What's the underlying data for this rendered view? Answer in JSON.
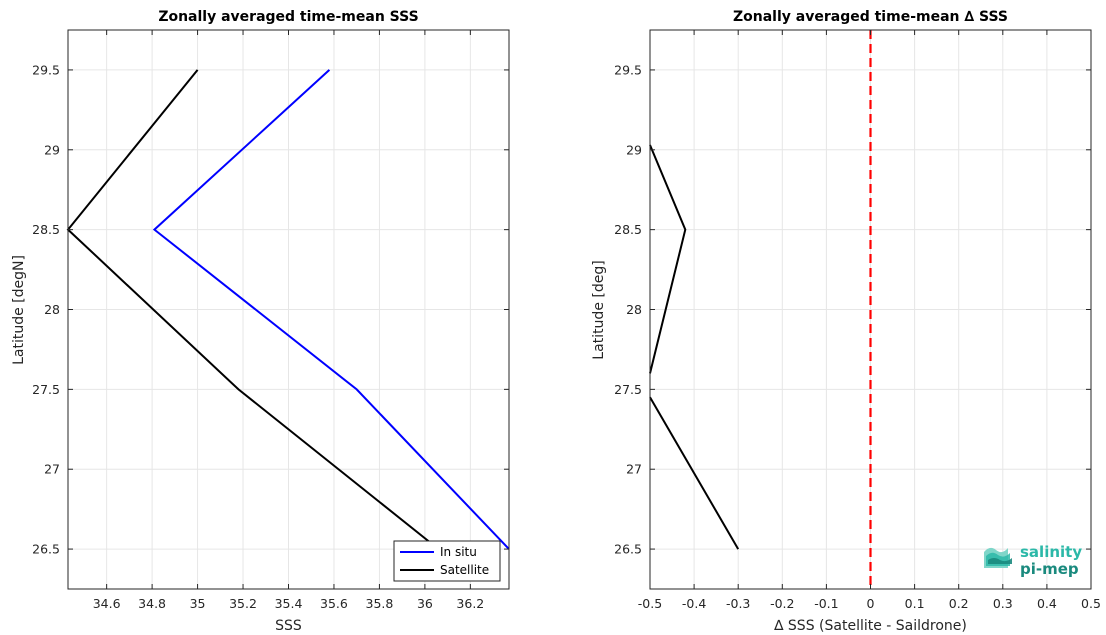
{
  "chart_data": [
    {
      "type": "line",
      "title": "Zonally averaged time-mean SSS",
      "xlabel": "SSS",
      "ylabel": "Latitude [degN]",
      "xlim": [
        34.43,
        36.37
      ],
      "ylim": [
        26.25,
        29.75
      ],
      "xticks": [
        34.6,
        34.8,
        35,
        35.2,
        35.4,
        35.6,
        35.8,
        36,
        36.2
      ],
      "xtick_labels": [
        "34.6",
        "34.8",
        "35",
        "35.2",
        "35.4",
        "35.6",
        "35.8",
        "36",
        "36.2"
      ],
      "yticks": [
        26.5,
        27,
        27.5,
        28,
        28.5,
        29,
        29.5
      ],
      "ytick_labels": [
        "26.5",
        "27",
        "27.5",
        "28",
        "28.5",
        "29",
        "29.5"
      ],
      "grid": true,
      "legend": "bottom-right",
      "series": [
        {
          "name": "In situ",
          "color": "#0000ff",
          "points": [
            [
              36.37,
              26.5
            ],
            [
              35.7,
              27.5
            ],
            [
              34.81,
              28.5
            ],
            [
              35.58,
              29.5
            ]
          ]
        },
        {
          "name": "Satellite",
          "color": "#000000",
          "points": [
            [
              36.06,
              26.5
            ],
            [
              35.18,
              27.5
            ],
            [
              34.43,
              28.5
            ],
            [
              35.0,
              29.5
            ]
          ]
        }
      ]
    },
    {
      "type": "line",
      "title": "Zonally averaged time-mean ∆ SSS",
      "xlabel": "∆ SSS (Satellite - Saildrone)",
      "ylabel": "Latitude [deg]",
      "xlim": [
        -0.5,
        0.5
      ],
      "ylim": [
        26.25,
        29.75
      ],
      "xticks": [
        -0.5,
        -0.4,
        -0.3,
        -0.2,
        -0.1,
        0,
        0.1,
        0.2,
        0.3,
        0.4,
        0.5
      ],
      "xtick_labels": [
        "-0.5",
        "-0.4",
        "-0.3",
        "-0.2",
        "-0.1",
        "0",
        "0.1",
        "0.2",
        "0.3",
        "0.4",
        "0.5"
      ],
      "yticks": [
        26.5,
        27,
        27.5,
        28,
        28.5,
        29,
        29.5
      ],
      "ytick_labels": [
        "26.5",
        "27",
        "27.5",
        "28",
        "28.5",
        "29",
        "29.5"
      ],
      "grid": true,
      "reference_line": {
        "x": 0,
        "color": "#ff0000",
        "style": "dashed"
      },
      "series": [
        {
          "color": "#000000",
          "points": [
            [
              -0.3,
              26.5
            ],
            [
              -0.5,
              27.45
            ]
          ]
        },
        {
          "color": "#000000",
          "points": [
            [
              -0.5,
              27.6
            ],
            [
              -0.42,
              28.5
            ],
            [
              -0.5,
              29.03
            ]
          ]
        }
      ]
    }
  ],
  "logo": {
    "line1": "salinity",
    "line2": "pi-mep",
    "color1": "#2bb8a8",
    "color2": "#1a8a7e"
  }
}
